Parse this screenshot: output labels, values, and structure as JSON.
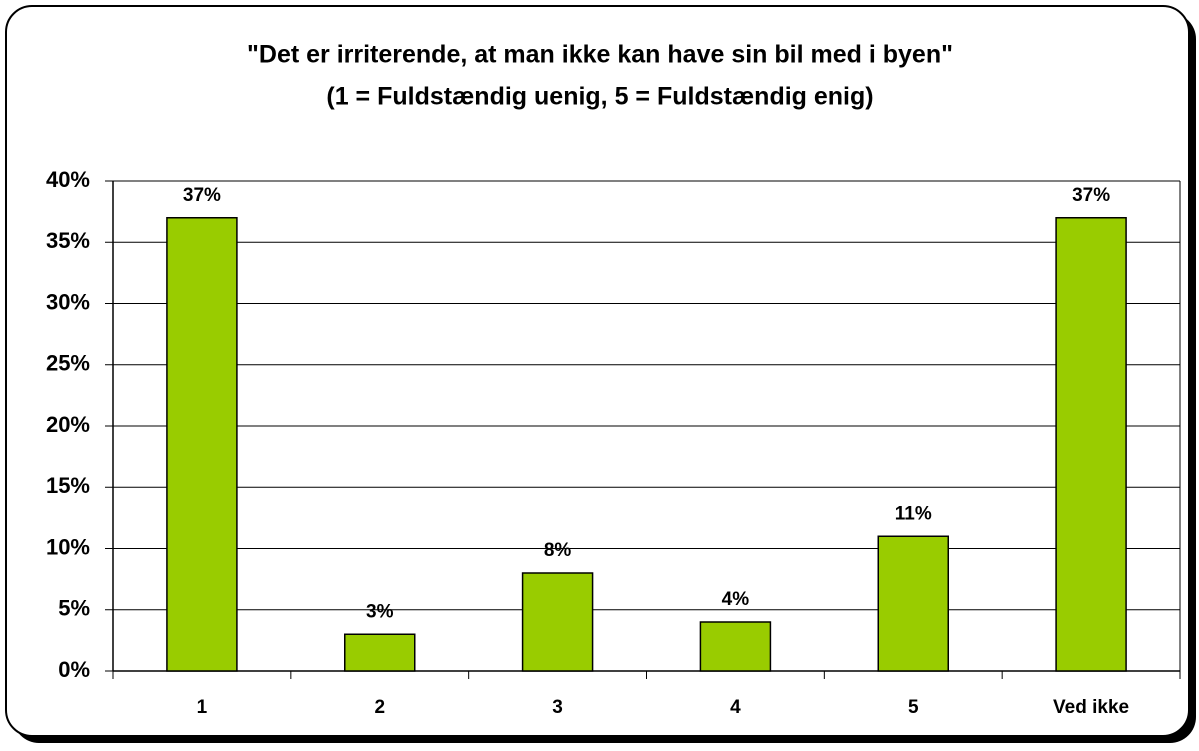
{
  "chart_data": {
    "type": "bar",
    "title": "\"Det er irriterende, at man ikke kan have sin bil med i byen\"",
    "subtitle": "(1 = Fuldstændig uenig, 5 = Fuldstændig enig)",
    "categories": [
      "1",
      "2",
      "3",
      "4",
      "5",
      "Ved ikke"
    ],
    "values": [
      37,
      3,
      8,
      4,
      11,
      37
    ],
    "value_labels": [
      "37%",
      "3%",
      "8%",
      "4%",
      "11%",
      "37%"
    ],
    "color": "#99cc00",
    "ylim": [
      0,
      40
    ],
    "yticks": [
      {
        "value": 0,
        "label": "0%"
      },
      {
        "value": 5,
        "label": "5%"
      },
      {
        "value": 10,
        "label": "10%"
      },
      {
        "value": 15,
        "label": "15%"
      },
      {
        "value": 20,
        "label": "20%"
      },
      {
        "value": 25,
        "label": "25%"
      },
      {
        "value": 30,
        "label": "30%"
      },
      {
        "value": 35,
        "label": "35%"
      },
      {
        "value": 40,
        "label": "40%"
      }
    ],
    "grid": true
  }
}
